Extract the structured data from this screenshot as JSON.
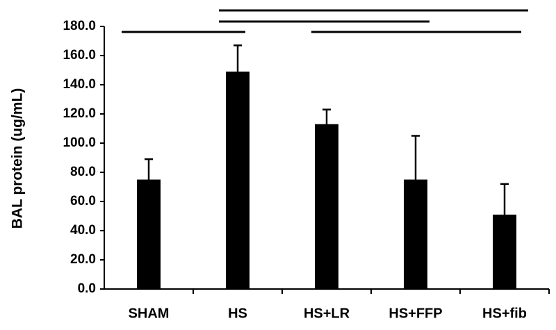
{
  "chart_data": {
    "type": "bar",
    "y_label": "BAL protein (ug/mL)",
    "categories": [
      "SHAM",
      "HS",
      "HS+LR",
      "HS+FFP",
      "HS+fib"
    ],
    "values": [
      75,
      149,
      113,
      75,
      51
    ],
    "errors": [
      14,
      18,
      10,
      30,
      21
    ],
    "color": "#000000",
    "ylim": [
      0,
      180
    ],
    "yticks": [
      {
        "value": 0,
        "label": "0.0"
      },
      {
        "value": 20,
        "label": "20.0"
      },
      {
        "value": 40,
        "label": "40.0"
      },
      {
        "value": 60,
        "label": "60.0"
      },
      {
        "value": 80,
        "label": "80.0"
      },
      {
        "value": 100,
        "label": "100.0"
      },
      {
        "value": 120,
        "label": "120.0"
      },
      {
        "value": 140,
        "label": "140.0"
      },
      {
        "value": 160,
        "label": "160.0"
      },
      {
        "value": 180,
        "label": "180.0"
      }
    ],
    "grid": false
  }
}
